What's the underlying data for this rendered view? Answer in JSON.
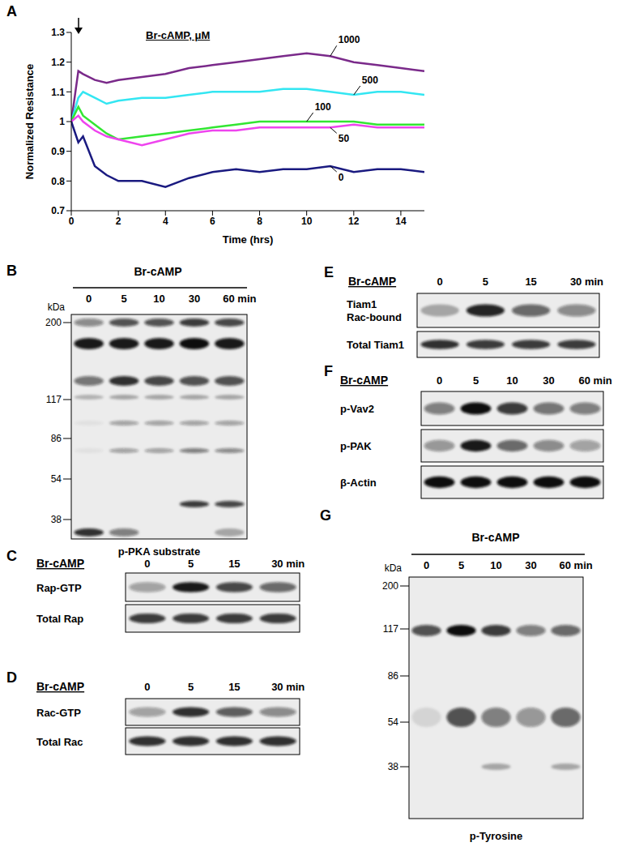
{
  "chart_data": {
    "type": "line",
    "label": "A",
    "title": "Br-cAMP, μM",
    "x_label": "Time (hrs)",
    "y_label": "Normalized Resistance",
    "x": [
      0,
      0.3,
      0.5,
      1,
      1.5,
      2,
      3,
      4,
      5,
      6,
      7,
      8,
      9,
      10,
      11,
      12,
      13,
      14,
      15
    ],
    "xlim": [
      0,
      15
    ],
    "xticks": [
      0,
      2,
      4,
      6,
      8,
      10,
      12,
      14
    ],
    "ylim": [
      0.7,
      1.3
    ],
    "yticks": [
      0.7,
      0.8,
      0.9,
      1,
      1.1,
      1.2,
      1.3
    ],
    "grid": false,
    "series": [
      {
        "name": "1000",
        "color": "#7a2a8a",
        "values": [
          1.0,
          1.17,
          1.16,
          1.14,
          1.13,
          1.14,
          1.15,
          1.16,
          1.18,
          1.19,
          1.2,
          1.21,
          1.22,
          1.23,
          1.22,
          1.2,
          1.19,
          1.18,
          1.17
        ]
      },
      {
        "name": "500",
        "color": "#33e6f2",
        "values": [
          1.0,
          1.08,
          1.1,
          1.08,
          1.06,
          1.07,
          1.08,
          1.08,
          1.09,
          1.1,
          1.1,
          1.1,
          1.11,
          1.11,
          1.1,
          1.09,
          1.1,
          1.1,
          1.09
        ]
      },
      {
        "name": "100",
        "color": "#33e633",
        "values": [
          1.0,
          1.05,
          1.02,
          0.99,
          0.96,
          0.94,
          0.95,
          0.96,
          0.97,
          0.98,
          0.99,
          1.0,
          1.0,
          1.0,
          1.0,
          1.0,
          0.99,
          0.99,
          0.99
        ]
      },
      {
        "name": "50",
        "color": "#ee44ee",
        "values": [
          1.0,
          1.02,
          1.0,
          0.97,
          0.95,
          0.94,
          0.92,
          0.94,
          0.96,
          0.97,
          0.97,
          0.98,
          0.98,
          0.98,
          0.98,
          0.99,
          0.98,
          0.98,
          0.98
        ]
      },
      {
        "name": "0",
        "color": "#1a1a80",
        "values": [
          1.0,
          0.93,
          0.95,
          0.85,
          0.82,
          0.8,
          0.8,
          0.78,
          0.81,
          0.83,
          0.84,
          0.83,
          0.84,
          0.84,
          0.85,
          0.83,
          0.84,
          0.84,
          0.83
        ]
      }
    ]
  },
  "blots": [
    {
      "label": "B",
      "title": "Br-cAMP",
      "lanes": [
        "0",
        "5",
        "10",
        "30",
        "60 min"
      ],
      "marker_unit": "kDa",
      "markers": [
        200,
        117,
        86,
        54,
        38
      ],
      "caption": "p-PKA substrate",
      "bands": [
        [
          0.45,
          0.7,
          0.7,
          0.8,
          0.75
        ],
        [
          0.95,
          0.95,
          0.95,
          1,
          0.95
        ],
        [
          0.55,
          0.85,
          0.75,
          0.7,
          0.7
        ],
        [
          0.25,
          0.3,
          0.3,
          0.3,
          0.3
        ],
        [
          0.05,
          0.35,
          0.35,
          0.35,
          0.35
        ],
        [
          0.05,
          0.35,
          0.35,
          0.5,
          0.45
        ],
        [
          0,
          0,
          0,
          0.8,
          0.75
        ],
        [
          0.85,
          0.5,
          0,
          0,
          0.3
        ]
      ]
    },
    {
      "label": "C",
      "title": "Br-cAMP",
      "lanes": [
        "0",
        "5",
        "15",
        "30 min"
      ],
      "rows": [
        {
          "name": "Rap-GTP",
          "intensity": [
            0.35,
            0.95,
            0.75,
            0.6
          ]
        },
        {
          "name": "Total Rap",
          "intensity": [
            0.8,
            0.8,
            0.8,
            0.8
          ]
        }
      ]
    },
    {
      "label": "D",
      "title": "Br-cAMP",
      "lanes": [
        "0",
        "5",
        "15",
        "30 min"
      ],
      "rows": [
        {
          "name": "Rac-GTP",
          "intensity": [
            0.35,
            0.85,
            0.65,
            0.45
          ]
        },
        {
          "name": "Total Rac",
          "intensity": [
            0.85,
            0.85,
            0.85,
            0.85
          ]
        }
      ]
    },
    {
      "label": "E",
      "title": "Br-cAMP",
      "lanes": [
        "0",
        "5",
        "15",
        "30 min"
      ],
      "rows": [
        {
          "name": [
            "Tiam1",
            "Rac-bound"
          ],
          "intensity": [
            0.3,
            0.9,
            0.6,
            0.45
          ]
        },
        {
          "name": "Total Tiam1",
          "intensity": [
            0.85,
            0.8,
            0.8,
            0.8
          ]
        }
      ]
    },
    {
      "label": "F",
      "title": "Br-cAMP",
      "lanes": [
        "0",
        "5",
        "10",
        "30",
        "60 min"
      ],
      "rows": [
        {
          "name": "p-Vav2",
          "intensity": [
            0.5,
            1.0,
            0.8,
            0.55,
            0.5
          ]
        },
        {
          "name": "p-PAK",
          "intensity": [
            0.4,
            0.95,
            0.6,
            0.45,
            0.35
          ]
        },
        {
          "name": "β-Actin",
          "intensity": [
            1,
            1,
            1,
            1,
            1
          ]
        }
      ]
    },
    {
      "label": "G",
      "title": "Br-cAMP",
      "lanes": [
        "0",
        "5",
        "10",
        "30",
        "60 min"
      ],
      "marker_unit": "kDa",
      "markers": [
        200,
        117,
        86,
        54,
        38
      ],
      "caption": "p-Tyrosine",
      "bands": [
        [
          0.7,
          1.0,
          0.8,
          0.5,
          0.6
        ],
        [
          0.1,
          0.7,
          0.5,
          0.4,
          0.6
        ],
        [
          0,
          0,
          0.3,
          0,
          0.3
        ]
      ]
    }
  ]
}
